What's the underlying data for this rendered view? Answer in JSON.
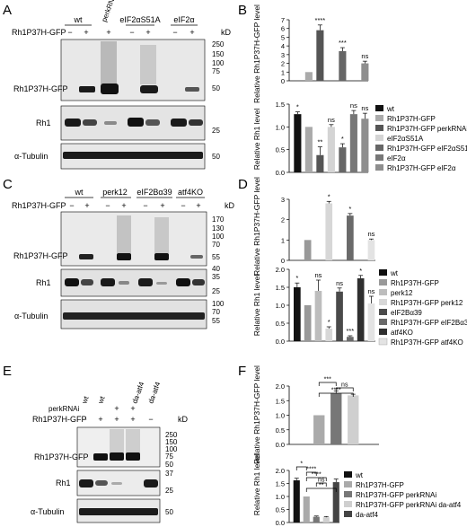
{
  "labels": {
    "A": "A",
    "B": "B",
    "C": "C",
    "D": "D",
    "E": "E",
    "F": "F",
    "rh1_gfp_row": "Rh1P37H-GFP",
    "rh1_gfp_band": "Rh1P37H-GFP",
    "rh1_band": "Rh1",
    "tubulin_band": "α-Tubulin",
    "kd": "kD",
    "minus": "−",
    "plus": "+",
    "y_gfp": "Relative Rh1P37H-GFP level",
    "y_rh1": "Relative Rh1 level"
  },
  "panel_a": {
    "groups": [
      "wt",
      "perkRNAi",
      "eIF2αS51A",
      "eIF2α"
    ],
    "signs": [
      "−",
      "+",
      "+",
      "−",
      "+",
      "−",
      "+"
    ],
    "markers": [
      "250",
      "150",
      "100",
      "75",
      "50",
      "25",
      "50"
    ]
  },
  "panel_c": {
    "groups": [
      "wt",
      "perk12",
      "eIF2Bα39",
      "atf4KO"
    ],
    "signs": [
      "−",
      "+",
      "−",
      "+",
      "−",
      "+",
      "−",
      "+"
    ],
    "markers": [
      "170",
      "130",
      "100",
      "70",
      "55",
      "40",
      "35",
      "25",
      "100",
      "70",
      "55"
    ]
  },
  "panel_e": {
    "perk_label": "perkRNAi",
    "groups": [
      "wt",
      "wt",
      "da-atf4",
      "da-atf4"
    ],
    "perk_signs": [
      "",
      "",
      "+",
      "+",
      ""
    ],
    "rh1_signs": [
      "−",
      "+",
      "+",
      "+",
      "−"
    ],
    "markers": [
      "250",
      "150",
      "100",
      "75",
      "50",
      "37",
      "25",
      "50"
    ]
  },
  "legends": {
    "b": [
      "wt",
      "Rh1P37H-GFP",
      "Rh1P37H-GFP perkRNAi",
      "eIF2αS51A",
      "Rh1P37H-GFP eIF2αS51A",
      "eIF2α",
      "Rh1P37H-GFP eIF2α"
    ],
    "d": [
      "wt",
      "Rh1P37H-GFP",
      "perk12",
      "Rh1P37H-GFP perk12",
      "eIF2Bα39",
      "Rh1P37H-GFP eIF2Bα39",
      "atf4KO",
      "Rh1P37H-GFP atf4KO"
    ],
    "f": [
      "wt",
      "Rh1P37H-GFP",
      "Rh1P37H-GFP perkRNAi",
      "Rh1P37H-GFP perkRNAi da-atf4",
      "da-atf4"
    ]
  },
  "colors": {
    "black": "#111111",
    "dark": "#3c3c3c",
    "mid": "#6e6e6e",
    "light": "#a6a6a6",
    "pale": "#cfcfcf",
    "blot_bg": "#e6e6e6",
    "band": "#1a1a1a"
  },
  "chart_data": [
    {
      "type": "bar",
      "panel": "B-top",
      "ylabel": "Relative Rh1P37H-GFP level",
      "ylim": [
        0,
        7
      ],
      "yticks": [
        0,
        1,
        2,
        3,
        4,
        5,
        6,
        7
      ],
      "values": [
        0,
        1.0,
        5.8,
        0,
        3.4,
        0,
        2.0
      ],
      "errors": [
        0,
        0,
        0.6,
        0,
        0.4,
        0,
        0.25
      ],
      "colors": [
        "#111111",
        "#aaaaaa",
        "#555555",
        "#d4d4d4",
        "#666666",
        "#777777",
        "#8e8e8e"
      ],
      "annotations": [
        "",
        "",
        "****",
        "",
        "***",
        "",
        "ns"
      ]
    },
    {
      "type": "bar",
      "panel": "B-bottom",
      "ylabel": "Relative Rh1 level",
      "ylim": [
        0,
        1.5
      ],
      "yticks": [
        0,
        0.5,
        1.0,
        1.5
      ],
      "values": [
        1.28,
        1.0,
        0.38,
        1.0,
        0.55,
        1.28,
        1.18
      ],
      "errors": [
        0.05,
        0,
        0.18,
        0.05,
        0.08,
        0.08,
        0.12
      ],
      "colors": [
        "#111111",
        "#aaaaaa",
        "#555555",
        "#d4d4d4",
        "#666666",
        "#777777",
        "#8e8e8e"
      ],
      "annotations": [
        "*",
        "",
        "**",
        "ns",
        "*",
        "ns",
        "ns"
      ]
    },
    {
      "type": "bar",
      "panel": "D-top",
      "ylabel": "Relative Rh1P37H-GFP level",
      "ylim": [
        0,
        3
      ],
      "yticks": [
        0,
        1,
        2,
        3
      ],
      "values": [
        0,
        1.0,
        0,
        2.8,
        0,
        2.2,
        0,
        1.0
      ],
      "errors": [
        0,
        0,
        0,
        0.1,
        0,
        0.1,
        0,
        0.05
      ],
      "colors": [
        "#111111",
        "#999999",
        "#bdbdbd",
        "#d7d7d7",
        "#4a4a4a",
        "#6a6a6a",
        "#2f2f2f",
        "#e3e3e3"
      ],
      "annotations": [
        "",
        "",
        "",
        "*",
        "",
        "*",
        "",
        "ns"
      ]
    },
    {
      "type": "bar",
      "panel": "D-bottom",
      "ylabel": "Relative Rh1 level",
      "ylim": [
        0,
        2.0
      ],
      "yticks": [
        0,
        0.5,
        1.0,
        1.5,
        2.0
      ],
      "values": [
        1.5,
        1.0,
        1.4,
        0.35,
        1.38,
        0.12,
        1.75,
        1.05
      ],
      "errors": [
        0.12,
        0,
        0.3,
        0.05,
        0.1,
        0.03,
        0.08,
        0.2
      ],
      "colors": [
        "#111111",
        "#999999",
        "#bdbdbd",
        "#d7d7d7",
        "#4a4a4a",
        "#6a6a6a",
        "#2f2f2f",
        "#e3e3e3"
      ],
      "annotations": [
        "*",
        "",
        "ns",
        "*",
        "ns",
        "***",
        "*",
        "ns"
      ]
    },
    {
      "type": "bar",
      "panel": "F-top",
      "ylabel": "Relative Rh1P37H-GFP level",
      "ylim": [
        0,
        2.0
      ],
      "yticks": [
        0,
        0.5,
        1.0,
        1.5,
        2.0
      ],
      "values": [
        0,
        1.0,
        1.75,
        1.68,
        0
      ],
      "errors": [
        0,
        0,
        0.08,
        0.04,
        0
      ],
      "colors": [
        "#111111",
        "#aaaaaa",
        "#777777",
        "#cfcfcf",
        "#444444"
      ],
      "brackets": [
        {
          "from": 1,
          "to": 2,
          "label": "***"
        },
        {
          "from": 2,
          "to": 3,
          "label": "ns"
        },
        {
          "from": 1,
          "to": 3,
          "label": "****"
        }
      ]
    },
    {
      "type": "bar",
      "panel": "F-bottom",
      "ylabel": "Relative Rh1 level",
      "ylim": [
        0,
        2.0
      ],
      "yticks": [
        0,
        0.5,
        1.0,
        1.5,
        2.0
      ],
      "values": [
        1.62,
        1.0,
        0.22,
        0.2,
        1.55
      ],
      "errors": [
        0.08,
        0,
        0.03,
        0.03,
        0.12
      ],
      "colors": [
        "#111111",
        "#aaaaaa",
        "#777777",
        "#cfcfcf",
        "#444444"
      ],
      "brackets": [
        {
          "from": 0,
          "to": 1,
          "label": "*"
        },
        {
          "from": 1,
          "to": 2,
          "label": "****"
        },
        {
          "from": 1,
          "to": 3,
          "label": "****"
        },
        {
          "from": 2,
          "to": 3,
          "label": "ns"
        },
        {
          "from": 1,
          "to": 4,
          "label": "**"
        }
      ]
    }
  ]
}
